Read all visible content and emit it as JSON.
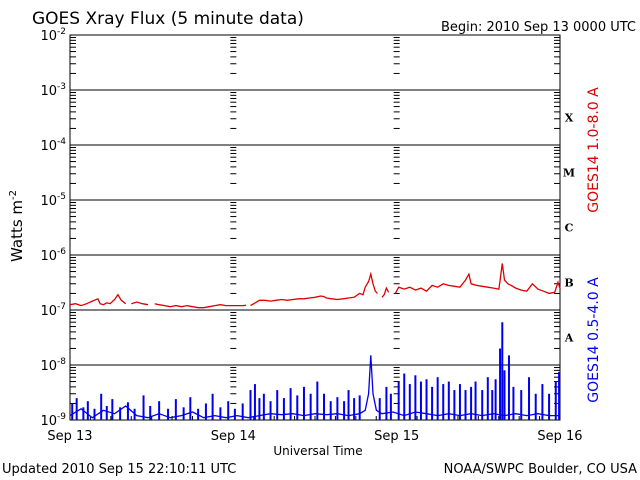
{
  "header": {
    "title": "GOES Xray Flux (5 minute data)",
    "begin": "Begin:  2010 Sep 13 0000 UTC"
  },
  "footer": {
    "updated": "Updated 2010 Sep 15 22:10:11 UTC",
    "credit": "NOAA/SWPC Boulder, CO USA"
  },
  "colors": {
    "long_channel": "#dd0000",
    "short_channel": "#0000ee",
    "axes": "#000000",
    "background": "#ffffff"
  },
  "chart_data": {
    "type": "line",
    "title": "GOES Xray Flux (5 minute data)",
    "xlabel": "Universal Time",
    "ylabel": "Watts m",
    "ylabel_superscript": "-2",
    "y_scale": "log",
    "ylim": [
      1e-09,
      0.01
    ],
    "xlim": [
      "2010-09-13 00:00",
      "2010-09-16 00:00"
    ],
    "x_ticks": [
      "Sep 13",
      "Sep 14",
      "Sep 15",
      "Sep 16"
    ],
    "y_ticks": [
      {
        "value": 1e-09,
        "base": "10",
        "exp": "-9"
      },
      {
        "value": 1e-08,
        "base": "10",
        "exp": "-8"
      },
      {
        "value": 1e-07,
        "base": "10",
        "exp": "-7"
      },
      {
        "value": 1e-06,
        "base": "10",
        "exp": "-6"
      },
      {
        "value": 1e-05,
        "base": "10",
        "exp": "-5"
      },
      {
        "value": 0.0001,
        "base": "10",
        "exp": "-4"
      },
      {
        "value": 0.001,
        "base": "10",
        "exp": "-3"
      },
      {
        "value": 0.01,
        "base": "10",
        "exp": "-2"
      }
    ],
    "flare_classes": [
      {
        "label": "A",
        "min": 1e-08,
        "max": 1e-07
      },
      {
        "label": "B",
        "min": 1e-07,
        "max": 1e-06
      },
      {
        "label": "C",
        "min": 1e-06,
        "max": 1e-05
      },
      {
        "label": "M",
        "min": 1e-05,
        "max": 0.0001
      },
      {
        "label": "X",
        "min": 0.0001,
        "max": 0.001
      }
    ],
    "grid": "horizontal at each decade",
    "legend_placement": "right-vertical",
    "series": [
      {
        "name": "GOES14 1.0-8.0 A",
        "color": "#dd0000",
        "segments": [
          [
            [
              0.0,
              1.25e-07
            ],
            [
              0.05,
              1.3e-07
            ],
            [
              0.1,
              1.2e-07
            ],
            [
              0.15,
              1.3e-07
            ],
            [
              0.2,
              1.45e-07
            ],
            [
              0.25,
              1.6e-07
            ],
            [
              0.27,
              1.3e-07
            ],
            [
              0.3,
              1.25e-07
            ],
            [
              0.33,
              1.35e-07
            ],
            [
              0.36,
              1.3e-07
            ],
            [
              0.4,
              1.55e-07
            ],
            [
              0.43,
              1.9e-07
            ],
            [
              0.46,
              1.5e-07
            ],
            [
              0.5,
              1.3e-07
            ]
          ],
          [
            [
              0.55,
              1.3e-07
            ],
            [
              0.6,
              1.4e-07
            ],
            [
              0.65,
              1.3e-07
            ],
            [
              0.7,
              1.25e-07
            ]
          ],
          [
            [
              0.76,
              1.3e-07
            ],
            [
              0.8,
              1.25e-07
            ],
            [
              0.85,
              1.2e-07
            ],
            [
              0.9,
              1.15e-07
            ],
            [
              0.95,
              1.2e-07
            ],
            [
              1.0,
              1.15e-07
            ],
            [
              1.05,
              1.2e-07
            ],
            [
              1.1,
              1.15e-07
            ],
            [
              1.15,
              1.1e-07
            ],
            [
              1.2,
              1.1e-07
            ],
            [
              1.25,
              1.15e-07
            ],
            [
              1.3,
              1.2e-07
            ],
            [
              1.35,
              1.25e-07
            ],
            [
              1.4,
              1.2e-07
            ],
            [
              1.45,
              1.2e-07
            ],
            [
              1.5,
              1.2e-07
            ],
            [
              1.55,
              1.2e-07
            ],
            [
              1.58,
              1.22e-07
            ]
          ],
          [
            [
              1.62,
              1.2e-07
            ],
            [
              1.65,
              1.3e-07
            ],
            [
              1.7,
              1.5e-07
            ],
            [
              1.75,
              1.5e-07
            ],
            [
              1.8,
              1.45e-07
            ],
            [
              1.85,
              1.5e-07
            ],
            [
              1.9,
              1.55e-07
            ],
            [
              1.95,
              1.5e-07
            ],
            [
              2.0,
              1.55e-07
            ],
            [
              2.05,
              1.6e-07
            ],
            [
              2.1,
              1.6e-07
            ],
            [
              2.15,
              1.65e-07
            ],
            [
              2.2,
              1.7e-07
            ],
            [
              2.25,
              1.8e-07
            ],
            [
              2.28,
              1.75e-07
            ],
            [
              2.3,
              1.65e-07
            ],
            [
              2.35,
              1.6e-07
            ],
            [
              2.4,
              1.55e-07
            ],
            [
              2.45,
              1.6e-07
            ],
            [
              2.5,
              1.65e-07
            ],
            [
              2.55,
              1.7e-07
            ],
            [
              2.6,
              2e-07
            ],
            [
              2.63,
              1.9e-07
            ],
            [
              2.65,
              2.6e-07
            ],
            [
              2.68,
              3.3e-07
            ],
            [
              2.7,
              4.5e-07
            ],
            [
              2.72,
              3e-07
            ],
            [
              2.74,
              2.2e-07
            ],
            [
              2.76,
              2e-07
            ]
          ],
          [
            [
              2.8,
              1.7e-07
            ],
            [
              2.82,
              1.9e-07
            ],
            [
              2.84,
              2.5e-07
            ],
            [
              2.86,
              2.1e-07
            ]
          ],
          [
            [
              2.92,
              2e-07
            ],
            [
              2.95,
              2.6e-07
            ],
            [
              3.0,
              2.4e-07
            ],
            [
              3.05,
              2.6e-07
            ],
            [
              3.1,
              2.3e-07
            ],
            [
              3.15,
              2.5e-07
            ],
            [
              3.2,
              2.2e-07
            ],
            [
              3.25,
              2.8e-07
            ],
            [
              3.3,
              2.6e-07
            ],
            [
              3.35,
              3e-07
            ],
            [
              3.4,
              2.8e-07
            ],
            [
              3.45,
              2.7e-07
            ],
            [
              3.5,
              2.6e-07
            ],
            [
              3.55,
              3.5e-07
            ],
            [
              3.58,
              4.5e-07
            ],
            [
              3.6,
              3e-07
            ],
            [
              3.65,
              2.8e-07
            ],
            [
              3.7,
              2.7e-07
            ],
            [
              3.75,
              2.6e-07
            ],
            [
              3.8,
              2.5e-07
            ],
            [
              3.85,
              2.4e-07
            ],
            [
              3.88,
              7e-07
            ],
            [
              3.9,
              3.5e-07
            ],
            [
              3.93,
              3e-07
            ],
            [
              3.96,
              2.8e-07
            ],
            [
              4.0,
              2.5e-07
            ],
            [
              4.05,
              2.3e-07
            ],
            [
              4.1,
              2.2e-07
            ],
            [
              4.15,
              3e-07
            ],
            [
              4.2,
              2.4e-07
            ],
            [
              4.25,
              2.2e-07
            ],
            [
              4.3,
              2e-07
            ],
            [
              4.35,
              2.1e-07
            ],
            [
              4.38,
              3.2e-07
            ],
            [
              4.4,
              2.4e-07
            ]
          ]
        ]
      },
      {
        "name": "GOES14 0.5-4.0 A",
        "color": "#0000ee",
        "segments": [
          [
            [
              0.0,
              1.2e-09
            ],
            [
              0.1,
              1.6e-09
            ],
            [
              0.2,
              1.1e-09
            ],
            [
              0.3,
              1.5e-09
            ],
            [
              0.4,
              1.3e-09
            ],
            [
              0.5,
              1.8e-09
            ],
            [
              0.6,
              1.2e-09
            ],
            [
              0.7,
              1.1e-09
            ],
            [
              0.8,
              1.3e-09
            ],
            [
              0.9,
              1.1e-09
            ],
            [
              1.0,
              1.2e-09
            ],
            [
              1.1,
              1.4e-09
            ],
            [
              1.2,
              1.1e-09
            ],
            [
              1.3,
              1.2e-09
            ],
            [
              1.4,
              1.1e-09
            ],
            [
              1.5,
              1.2e-09
            ],
            [
              1.6,
              1.1e-09
            ],
            [
              1.7,
              1.2e-09
            ],
            [
              1.8,
              1.3e-09
            ],
            [
              1.9,
              1.25e-09
            ],
            [
              2.0,
              1.3e-09
            ],
            [
              2.1,
              1.2e-09
            ],
            [
              2.2,
              1.3e-09
            ],
            [
              2.3,
              1.25e-09
            ],
            [
              2.4,
              1.3e-09
            ],
            [
              2.5,
              1.2e-09
            ],
            [
              2.6,
              1.3e-09
            ],
            [
              2.65,
              1.5e-09
            ],
            [
              2.68,
              3e-09
            ],
            [
              2.7,
              1.5e-08
            ],
            [
              2.72,
              3e-09
            ],
            [
              2.75,
              1.5e-09
            ],
            [
              2.8,
              1.3e-09
            ],
            [
              2.9,
              1.4e-09
            ],
            [
              3.0,
              1.2e-09
            ],
            [
              3.1,
              1.4e-09
            ],
            [
              3.2,
              1.3e-09
            ],
            [
              3.3,
              1.2e-09
            ],
            [
              3.4,
              1.3e-09
            ],
            [
              3.5,
              1.2e-09
            ],
            [
              3.6,
              1.3e-09
            ],
            [
              3.7,
              1.2e-09
            ],
            [
              3.8,
              1.3e-09
            ],
            [
              3.9,
              1.2e-09
            ],
            [
              4.0,
              1.3e-09
            ],
            [
              4.1,
              1.2e-09
            ],
            [
              4.2,
              1.3e-09
            ],
            [
              4.3,
              1.2e-09
            ],
            [
              4.4,
              1.2e-09
            ]
          ]
        ],
        "bursts": [
          [
            0.02,
            2e-09
          ],
          [
            0.06,
            2.5e-09
          ],
          [
            0.12,
            1.7e-09
          ],
          [
            0.16,
            2.2e-09
          ],
          [
            0.22,
            1.6e-09
          ],
          [
            0.28,
            3e-09
          ],
          [
            0.33,
            1.8e-09
          ],
          [
            0.38,
            2.4e-09
          ],
          [
            0.45,
            1.7e-09
          ],
          [
            0.52,
            2.1e-09
          ],
          [
            0.58,
            1.6e-09
          ],
          [
            0.66,
            2.8e-09
          ],
          [
            0.72,
            1.8e-09
          ],
          [
            0.8,
            2.2e-09
          ],
          [
            0.88,
            1.6e-09
          ],
          [
            0.95,
            2.4e-09
          ],
          [
            1.02,
            1.7e-09
          ],
          [
            1.08,
            2.6e-09
          ],
          [
            1.15,
            1.6e-09
          ],
          [
            1.22,
            2e-09
          ],
          [
            1.28,
            3e-09
          ],
          [
            1.35,
            1.7e-09
          ],
          [
            1.42,
            2.2e-09
          ],
          [
            1.48,
            1.6e-09
          ],
          [
            1.55,
            2e-09
          ],
          [
            1.62,
            3.5e-09
          ],
          [
            1.66,
            4.5e-09
          ],
          [
            1.7,
            2.5e-09
          ],
          [
            1.74,
            3e-09
          ],
          [
            1.8,
            2.2e-09
          ],
          [
            1.86,
            3.5e-09
          ],
          [
            1.92,
            2.5e-09
          ],
          [
            1.98,
            3.8e-09
          ],
          [
            2.04,
            2.8e-09
          ],
          [
            2.1,
            4e-09
          ],
          [
            2.16,
            3e-09
          ],
          [
            2.22,
            5e-09
          ],
          [
            2.28,
            3e-09
          ],
          [
            2.34,
            2.2e-09
          ],
          [
            2.4,
            2.6e-09
          ],
          [
            2.46,
            2.2e-09
          ],
          [
            2.5,
            3.5e-09
          ],
          [
            2.55,
            2.5e-09
          ],
          [
            2.6,
            2.8e-09
          ],
          [
            2.78,
            2.5e-09
          ],
          [
            2.84,
            4e-09
          ],
          [
            2.88,
            3e-09
          ],
          [
            2.95,
            5e-09
          ],
          [
            3.0,
            7e-09
          ],
          [
            3.05,
            4.5e-09
          ],
          [
            3.1,
            6.5e-09
          ],
          [
            3.15,
            5e-09
          ],
          [
            3.2,
            5.5e-09
          ],
          [
            3.25,
            4e-09
          ],
          [
            3.3,
            6e-09
          ],
          [
            3.35,
            4.5e-09
          ],
          [
            3.4,
            5e-09
          ],
          [
            3.45,
            3.5e-09
          ],
          [
            3.5,
            4.5e-09
          ],
          [
            3.55,
            3.5e-09
          ],
          [
            3.6,
            4e-09
          ],
          [
            3.64,
            5e-09
          ],
          [
            3.7,
            3.5e-09
          ],
          [
            3.75,
            6e-09
          ],
          [
            3.79,
            3.5e-09
          ],
          [
            3.82,
            5.5e-09
          ],
          [
            3.86,
            2e-08
          ],
          [
            3.88,
            6e-08
          ],
          [
            3.9,
            8e-09
          ],
          [
            3.94,
            1.5e-08
          ],
          [
            3.98,
            4e-09
          ],
          [
            4.05,
            3.5e-09
          ],
          [
            4.12,
            6e-09
          ],
          [
            4.18,
            3e-09
          ],
          [
            4.24,
            4.5e-09
          ],
          [
            4.3,
            3e-09
          ],
          [
            4.36,
            5e-09
          ],
          [
            4.39,
            7.5e-09
          ]
        ]
      }
    ]
  }
}
